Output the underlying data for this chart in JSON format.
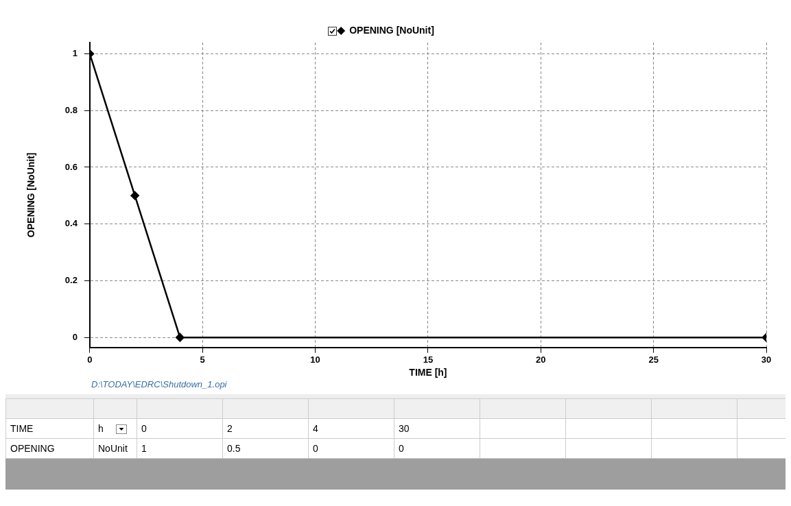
{
  "chart_data": {
    "type": "line",
    "xlabel": "TIME [h]",
    "ylabel": "OPENING [NoUnit]",
    "x": [
      0,
      2,
      4,
      30
    ],
    "series": [
      {
        "name": "OPENING [NoUnit]",
        "color": "#000000",
        "values": [
          1,
          0.5,
          0,
          0
        ]
      }
    ],
    "xlim": [
      0,
      30
    ],
    "xticks": [
      0,
      5,
      10,
      15,
      20,
      25,
      30
    ],
    "ylim": [
      -0.035,
      1.04
    ],
    "yticks": [
      0,
      0.2,
      0.4,
      0.6,
      0.8,
      1
    ],
    "grid": true,
    "legend": "top",
    "marker": "diamond",
    "line_style": "solid",
    "annotations": [
      "D:\\TODAY\\EDRC\\Shutdown_1.opi",
      "TIME",
      "h",
      "0",
      "2",
      "4",
      "30",
      "OPENING",
      "NoUnit",
      "1",
      "0.5",
      "0",
      "0"
    ]
  }
}
